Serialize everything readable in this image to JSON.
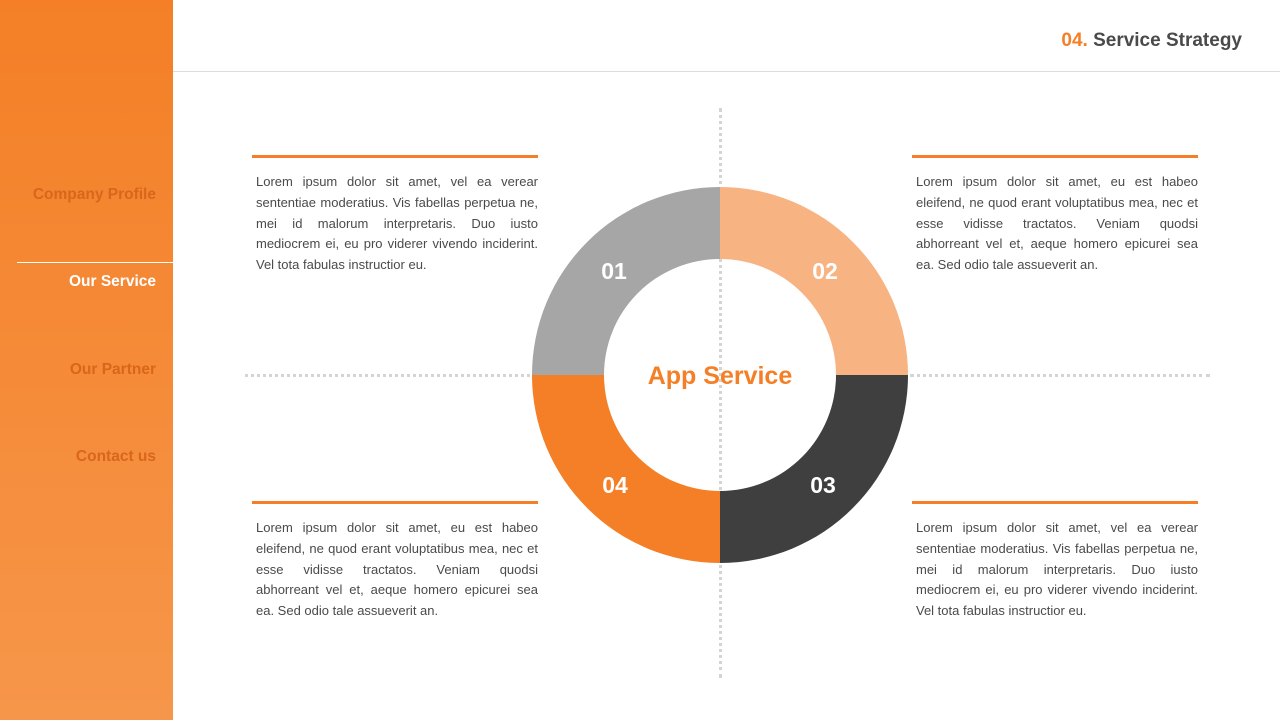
{
  "sidebar": {
    "items": [
      {
        "label": "Company Profile",
        "active": false
      },
      {
        "label": "Our Service",
        "active": true
      },
      {
        "label": "Our Partner",
        "active": false
      },
      {
        "label": "Contact us",
        "active": false
      }
    ]
  },
  "header": {
    "number": "04.",
    "title": "Service Strategy"
  },
  "diagram": {
    "center_label": "App Service",
    "segments": [
      {
        "label": "01",
        "color": "#a6a6a6"
      },
      {
        "label": "02",
        "color": "#f8b382"
      },
      {
        "label": "03",
        "color": "#3f3f3f"
      },
      {
        "label": "04",
        "color": "#f47f26"
      }
    ]
  },
  "blocks": {
    "top_left": "Lorem ipsum dolor sit amet, vel ea verear sententiae moderatius. Vis fabellas perpetua ne, mei id malorum interpretaris. Duo iusto mediocrem ei, eu pro viderer vivendo inciderint. Vel tota fabulas instructior eu.",
    "top_right": "Lorem ipsum dolor sit amet, eu est habeo eleifend, ne quod erant voluptatibus mea, nec et esse vidisse tractatos. Veniam quodsi abhorreant vel et, aeque homero epicurei sea ea. Sed odio tale assueverit an.",
    "bottom_left": "Lorem ipsum dolor sit amet, eu est habeo eleifend, ne quod erant voluptatibus mea, nec et esse vidisse tractatos. Veniam quodsi abhorreant vel et, aeque homero epicurei sea ea. Sed odio tale assueverit an.",
    "bottom_right": "Lorem ipsum dolor sit amet, vel ea verear sententiae moderatius. Vis fabellas perpetua ne, mei id malorum interpretaris. Duo iusto mediocrem ei, eu pro viderer vivendo inciderint. Vel tota fabulas instructior eu."
  },
  "colors": {
    "accent": "#f47f26",
    "text": "#4a4a4a"
  }
}
